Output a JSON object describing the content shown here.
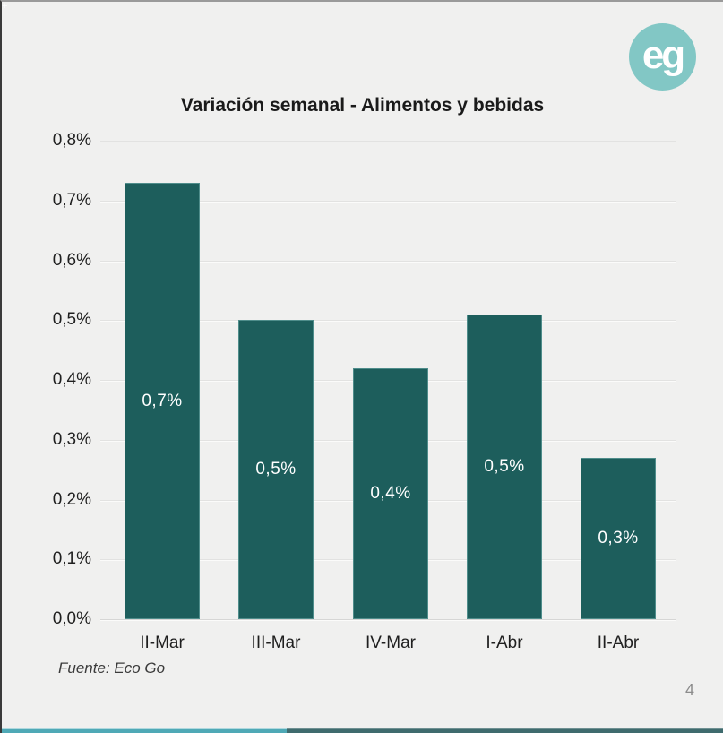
{
  "page": {
    "logo_text": "eg",
    "source_note": "Fuente: Eco Go",
    "page_number": "4"
  },
  "colors": {
    "background": "#f0f0ef",
    "bar": "#1d5e5c",
    "bar_label": "#ffffff",
    "logo_circle": "#82c7c5",
    "progress_left": "#4fa9b6",
    "progress_right": "#3f6b6e"
  },
  "chart_data": {
    "type": "bar",
    "title": "Variación semanal - Alimentos y bebidas",
    "categories": [
      "II-Mar",
      "III-Mar",
      "IV-Mar",
      "I-Abr",
      "II-Abr"
    ],
    "values": [
      0.73,
      0.5,
      0.42,
      0.51,
      0.27
    ],
    "bar_labels": [
      "0,7%",
      "0,5%",
      "0,4%",
      "0,5%",
      "0,3%"
    ],
    "xlabel": "",
    "ylabel": "",
    "ylim": [
      0,
      0.8
    ],
    "y_tick_labels": [
      "0,0%",
      "0,1%",
      "0,2%",
      "0,3%",
      "0,4%",
      "0,5%",
      "0,6%",
      "0,7%",
      "0,8%"
    ],
    "y_tick_values": [
      0.0,
      0.1,
      0.2,
      0.3,
      0.4,
      0.5,
      0.6,
      0.7,
      0.8
    ],
    "grid": true,
    "legend_position": "none",
    "bar_label_position": "inside-center"
  }
}
